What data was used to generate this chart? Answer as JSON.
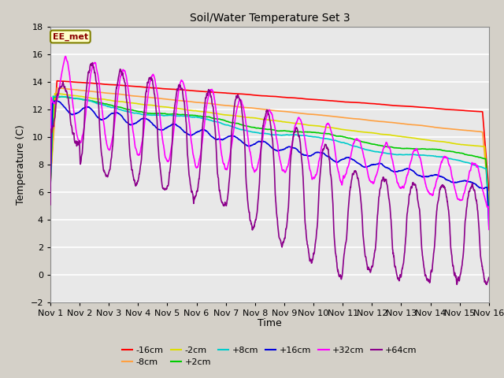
{
  "title": "Soil/Water Temperature Set 3",
  "xlabel": "Time",
  "ylabel": "Temperature (C)",
  "ylim": [
    -2,
    18
  ],
  "xlim": [
    0,
    15
  ],
  "xtick_labels": [
    "Nov 1",
    "Nov 2",
    "Nov 3",
    "Nov 4",
    "Nov 5",
    "Nov 6",
    "Nov 7",
    "Nov 8",
    "Nov 9",
    "Nov 10",
    "Nov 11",
    "Nov 12",
    "Nov 13",
    "Nov 14",
    "Nov 15",
    "Nov 16"
  ],
  "annotation_text": "EE_met",
  "annotation_color": "#8B0000",
  "annotation_bg": "#FFFFCC",
  "fig_bg": "#D4D0C8",
  "plot_bg": "#E8E8E8",
  "grid_color": "#FFFFFF",
  "series_order": [
    "-16cm",
    "-8cm",
    "-2cm",
    "+2cm",
    "+8cm",
    "+16cm",
    "+32cm",
    "+64cm"
  ],
  "series": {
    "-16cm": {
      "color": "#FF0000",
      "linewidth": 1.2
    },
    "-8cm": {
      "color": "#FFA040",
      "linewidth": 1.2
    },
    "-2cm": {
      "color": "#DDDD00",
      "linewidth": 1.2
    },
    "+2cm": {
      "color": "#00CC00",
      "linewidth": 1.2
    },
    "+8cm": {
      "color": "#00CCCC",
      "linewidth": 1.2
    },
    "+16cm": {
      "color": "#0000DD",
      "linewidth": 1.2
    },
    "+32cm": {
      "color": "#FF00FF",
      "linewidth": 1.2
    },
    "+64cm": {
      "color": "#8B008B",
      "linewidth": 1.2
    }
  },
  "legend_ncol_row1": 6,
  "legend_ncol_row2": 2
}
